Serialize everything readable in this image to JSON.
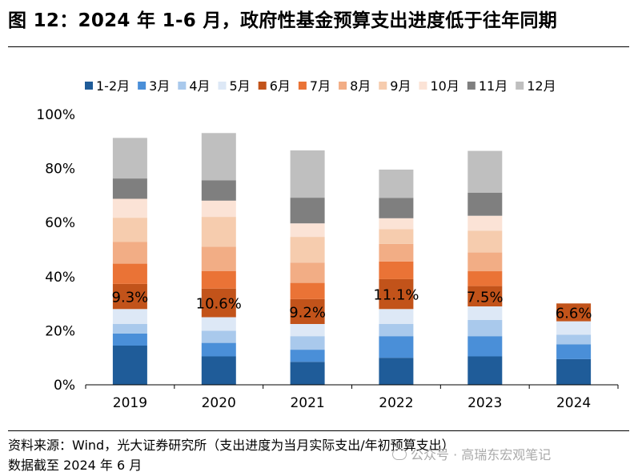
{
  "title": "图 12：2024 年 1-6 月，政府性基金预算支出进度低于往年同期",
  "source": "资料来源：Wind，光大证券研究所（支出进度为当月实际支出/年初预算支出）",
  "date_note": "数据截至 2024 年 6 月",
  "watermark": "公众号 · 高瑞东宏观笔记",
  "chart_data": {
    "type": "bar",
    "stacked": true,
    "title": "",
    "xlabel": "",
    "ylabel": "",
    "ylim": [
      0,
      100
    ],
    "yticks": [
      0,
      20,
      40,
      60,
      80,
      100
    ],
    "ytick_labels": [
      "0%",
      "20%",
      "40%",
      "60%",
      "80%",
      "100%"
    ],
    "legend_position": "top",
    "categories": [
      "2019",
      "2020",
      "2021",
      "2022",
      "2023",
      "2024"
    ],
    "series": [
      {
        "name": "1-2月",
        "color": "#1f5c99",
        "values": [
          14.5,
          10.5,
          8.5,
          10.0,
          10.5,
          9.5
        ]
      },
      {
        "name": "3月",
        "color": "#4a8fd8",
        "values": [
          4.5,
          5.0,
          4.5,
          8.0,
          7.5,
          5.5
        ]
      },
      {
        "name": "4月",
        "color": "#a9c9ec",
        "values": [
          3.5,
          4.5,
          5.0,
          4.5,
          6.0,
          3.5
        ]
      },
      {
        "name": "5月",
        "color": "#dde8f6",
        "values": [
          5.5,
          5.0,
          4.5,
          5.5,
          5.0,
          5.0
        ]
      },
      {
        "name": "6月",
        "color": "#c2531a",
        "values": [
          9.3,
          10.6,
          9.2,
          11.1,
          7.5,
          6.6
        ]
      },
      {
        "name": "7月",
        "color": "#ea7336",
        "values": [
          7.5,
          6.5,
          6.0,
          6.5,
          5.5,
          0
        ]
      },
      {
        "name": "8月",
        "color": "#f2ad85",
        "values": [
          8.0,
          9.0,
          7.5,
          6.5,
          7.0,
          0
        ]
      },
      {
        "name": "9月",
        "color": "#f6ccae",
        "values": [
          9.0,
          11.0,
          9.5,
          5.5,
          8.0,
          0
        ]
      },
      {
        "name": "10月",
        "color": "#fbe3d6",
        "values": [
          7.0,
          6.0,
          5.0,
          4.0,
          5.5,
          0
        ]
      },
      {
        "name": "11月",
        "color": "#7f7f7f",
        "values": [
          7.5,
          7.5,
          9.5,
          7.5,
          8.5,
          0
        ]
      },
      {
        "name": "12月",
        "color": "#bfbfbf",
        "values": [
          15.0,
          17.5,
          17.5,
          10.5,
          15.5,
          0
        ]
      }
    ],
    "annotations": [
      {
        "category": "2019",
        "series": "6月",
        "text": "9.3%"
      },
      {
        "category": "2020",
        "series": "6月",
        "text": "10.6%"
      },
      {
        "category": "2021",
        "series": "6月",
        "text": "9.2%"
      },
      {
        "category": "2022",
        "series": "6月",
        "text": "11.1%"
      },
      {
        "category": "2023",
        "series": "6月",
        "text": "7.5%"
      },
      {
        "category": "2024",
        "series": "6月",
        "text": "6.6%"
      }
    ]
  }
}
